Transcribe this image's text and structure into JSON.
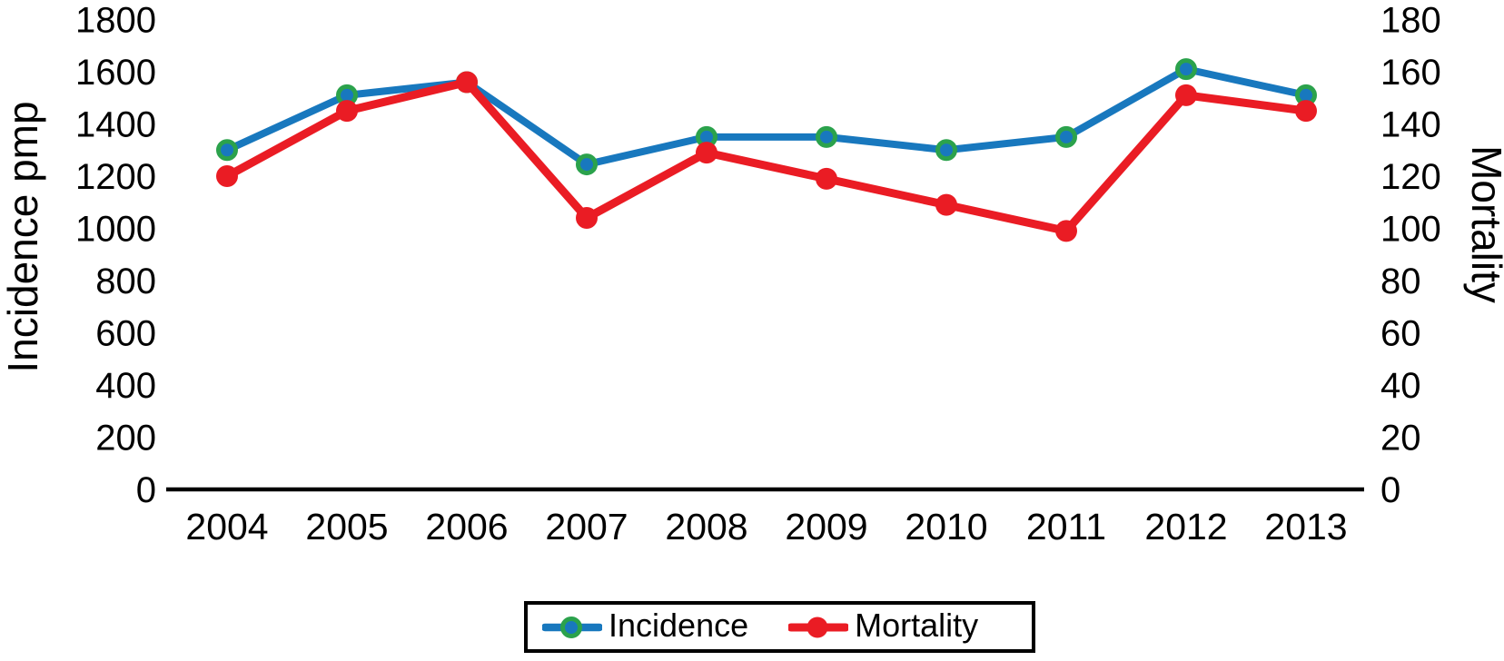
{
  "chart_data": {
    "type": "line",
    "categories": [
      "2004",
      "2005",
      "2006",
      "2007",
      "2008",
      "2009",
      "2010",
      "2011",
      "2012",
      "2013"
    ],
    "series": [
      {
        "name": "Incidence",
        "axis": "left",
        "line_color": "#1878BE",
        "marker_fill": "#1878BE",
        "marker_ring": "#2BA24C",
        "values": [
          1300,
          1510,
          1560,
          1245,
          1350,
          1350,
          1300,
          1350,
          1610,
          1510
        ]
      },
      {
        "name": "Mortality",
        "axis": "right",
        "line_color": "#EA1C24",
        "marker_fill": "#EA1C24",
        "marker_ring": "#EA1C24",
        "values": [
          120,
          145,
          156,
          104,
          129,
          119,
          109,
          99,
          151,
          145
        ]
      }
    ],
    "left_axis": {
      "label": "Incidence pmp",
      "min": 0,
      "max": 1800,
      "tick_step": 200,
      "ticks": [
        0,
        200,
        400,
        600,
        800,
        1000,
        1200,
        1400,
        1600,
        1800
      ]
    },
    "right_axis": {
      "label": "Mortality",
      "min": 0,
      "max": 180,
      "tick_step": 20,
      "ticks": [
        0,
        20,
        40,
        60,
        80,
        100,
        120,
        140,
        160,
        180
      ]
    },
    "x_axis": {
      "line_color": "#000000"
    },
    "grid": false,
    "legend": {
      "position": "bottom",
      "border_color": "#000000",
      "entries": [
        "Incidence",
        "Mortality"
      ]
    },
    "text_color": "#000000",
    "background_color": "#ffffff"
  }
}
